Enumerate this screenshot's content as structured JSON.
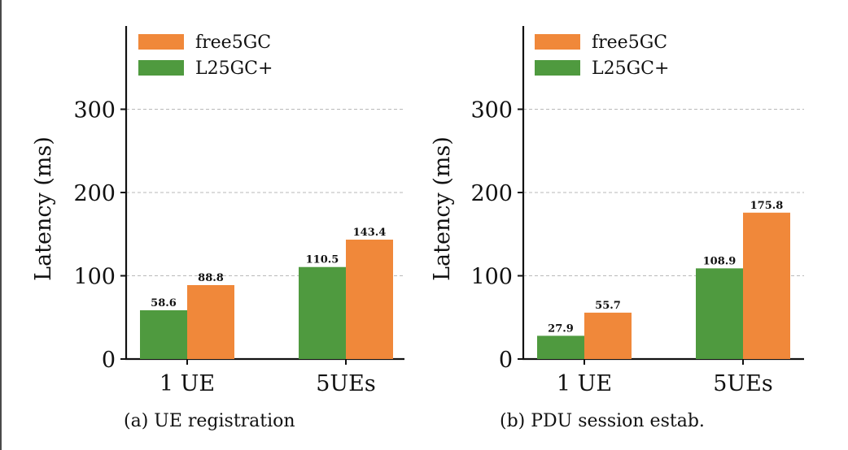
{
  "chart_data": [
    {
      "type": "bar",
      "caption": "(a) UE registration",
      "ylabel": "Latency (ms)",
      "xlabel": "",
      "categories": [
        "1 UE",
        "5UEs"
      ],
      "ylim": [
        0,
        400
      ],
      "yticks": [
        0,
        100,
        200,
        300
      ],
      "grid": "horizontal dashed",
      "legend_position": "top-left",
      "series": [
        {
          "name": "free5GC",
          "color": "#f0883a",
          "values": [
            88.8,
            143.4
          ],
          "labels": [
            "88.8",
            "143.4"
          ]
        },
        {
          "name": "L25GC+",
          "color": "#4f9a3f",
          "values": [
            58.6,
            110.5
          ],
          "labels": [
            "58.6",
            "110.5"
          ]
        }
      ]
    },
    {
      "type": "bar",
      "caption": "(b) PDU session estab.",
      "ylabel": "Latency (ms)",
      "xlabel": "",
      "categories": [
        "1 UE",
        "5UEs"
      ],
      "ylim": [
        0,
        400
      ],
      "yticks": [
        0,
        100,
        200,
        300
      ],
      "grid": "horizontal dashed",
      "legend_position": "top-left",
      "series": [
        {
          "name": "free5GC",
          "color": "#f0883a",
          "values": [
            55.7,
            175.8
          ],
          "labels": [
            "55.7",
            "175.8"
          ]
        },
        {
          "name": "L25GC+",
          "color": "#4f9a3f",
          "values": [
            27.9,
            108.9
          ],
          "labels": [
            "27.9",
            "108.9"
          ]
        }
      ]
    }
  ]
}
